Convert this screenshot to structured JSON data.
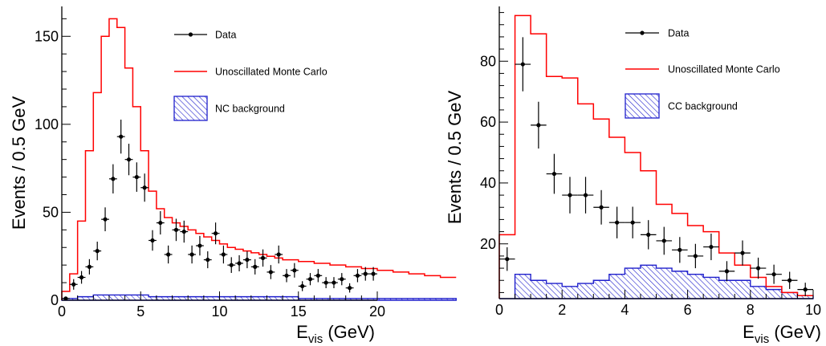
{
  "colors": {
    "mc": "#ff0000",
    "bg": "#1f1fcc",
    "data": "#000000"
  },
  "chart_data": [
    {
      "type": "histogram",
      "xlabel_main": "E",
      "xlabel_sub": "vis",
      "xlabel_unit": " (GeV)",
      "ylabel": "Events / 0.5 GeV",
      "xlim": [
        0,
        20
      ],
      "ylim": [
        0,
        167
      ],
      "xticks": [
        0,
        5,
        10,
        15,
        20
      ],
      "yticks": [
        0,
        50,
        100,
        150
      ],
      "bin_width": 0.5,
      "legend": {
        "data": "Data",
        "mc": "Unoscillated Monte Carlo",
        "bg": "NC background"
      },
      "mc_values": [
        5,
        15,
        45,
        85,
        118,
        150,
        160,
        155,
        132,
        110,
        85,
        62,
        52,
        47,
        44,
        42,
        40,
        38,
        36,
        34,
        32,
        30,
        29,
        28,
        27,
        26,
        25,
        24,
        23,
        23,
        22,
        22,
        21,
        21,
        20,
        20,
        19,
        19,
        18,
        18,
        17,
        17,
        16,
        16,
        15,
        15,
        14,
        14,
        13,
        13
      ],
      "bg_values": [
        1,
        1,
        2,
        2,
        3,
        3,
        3,
        3,
        3,
        3,
        3,
        2,
        2,
        2,
        2,
        2,
        2,
        2,
        2,
        2,
        2,
        2,
        2,
        2,
        2,
        2,
        2,
        2,
        2,
        2,
        1,
        1,
        1,
        1,
        1,
        1,
        1,
        1,
        1,
        1,
        1,
        1,
        1,
        1,
        1,
        1,
        1,
        1,
        1,
        1
      ],
      "data_points": [
        {
          "x": 0.25,
          "y": 1
        },
        {
          "x": 0.75,
          "y": 9
        },
        {
          "x": 1.25,
          "y": 13
        },
        {
          "x": 1.75,
          "y": 19
        },
        {
          "x": 2.25,
          "y": 28
        },
        {
          "x": 2.75,
          "y": 46
        },
        {
          "x": 3.25,
          "y": 69
        },
        {
          "x": 3.75,
          "y": 93
        },
        {
          "x": 4.25,
          "y": 80
        },
        {
          "x": 4.75,
          "y": 70
        },
        {
          "x": 5.25,
          "y": 64
        },
        {
          "x": 5.75,
          "y": 34
        },
        {
          "x": 6.25,
          "y": 44
        },
        {
          "x": 6.75,
          "y": 26
        },
        {
          "x": 7.25,
          "y": 40
        },
        {
          "x": 7.75,
          "y": 39
        },
        {
          "x": 8.25,
          "y": 26
        },
        {
          "x": 8.75,
          "y": 31
        },
        {
          "x": 9.25,
          "y": 23
        },
        {
          "x": 9.75,
          "y": 38
        },
        {
          "x": 10.25,
          "y": 26
        },
        {
          "x": 10.75,
          "y": 20
        },
        {
          "x": 11.25,
          "y": 21
        },
        {
          "x": 11.75,
          "y": 23
        },
        {
          "x": 12.25,
          "y": 19
        },
        {
          "x": 12.75,
          "y": 24
        },
        {
          "x": 13.25,
          "y": 16
        },
        {
          "x": 13.75,
          "y": 26
        },
        {
          "x": 14.25,
          "y": 14
        },
        {
          "x": 14.75,
          "y": 17
        },
        {
          "x": 15.25,
          "y": 8
        },
        {
          "x": 15.75,
          "y": 12
        },
        {
          "x": 16.25,
          "y": 14
        },
        {
          "x": 16.75,
          "y": 10
        },
        {
          "x": 17.25,
          "y": 10
        },
        {
          "x": 17.75,
          "y": 12
        },
        {
          "x": 18.25,
          "y": 7
        },
        {
          "x": 18.75,
          "y": 14
        },
        {
          "x": 19.25,
          "y": 15
        },
        {
          "x": 19.75,
          "y": 15
        }
      ]
    },
    {
      "type": "histogram",
      "xlabel_main": "E",
      "xlabel_sub": "vis",
      "xlabel_unit": " (GeV)",
      "ylabel": "Events / 0.5 GeV",
      "xlim": [
        0,
        10
      ],
      "ylim": [
        2,
        98
      ],
      "xticks": [
        0,
        2,
        4,
        6,
        8,
        10
      ],
      "yticks": [
        20,
        40,
        60,
        80
      ],
      "bin_width": 0.5,
      "legend": {
        "data": "Data",
        "mc": "Unoscillated Monte Carlo",
        "bg": "CC background"
      },
      "mc_values": [
        23,
        95,
        89,
        75,
        74.5,
        66,
        61,
        55,
        50,
        44,
        33,
        30,
        26,
        24,
        17,
        13,
        9,
        6,
        4,
        3
      ],
      "bg_values": [
        2,
        10,
        8,
        7,
        6,
        7,
        8,
        10,
        12,
        13,
        12,
        11,
        10,
        9,
        8,
        8,
        6,
        5,
        4,
        3
      ],
      "data_points": [
        {
          "x": 0.25,
          "y": 15
        },
        {
          "x": 0.75,
          "y": 79
        },
        {
          "x": 1.25,
          "y": 59
        },
        {
          "x": 1.75,
          "y": 43
        },
        {
          "x": 2.25,
          "y": 36
        },
        {
          "x": 2.75,
          "y": 36
        },
        {
          "x": 3.25,
          "y": 32
        },
        {
          "x": 3.75,
          "y": 27
        },
        {
          "x": 4.25,
          "y": 27
        },
        {
          "x": 4.75,
          "y": 23
        },
        {
          "x": 5.25,
          "y": 21
        },
        {
          "x": 5.75,
          "y": 18
        },
        {
          "x": 6.25,
          "y": 16
        },
        {
          "x": 6.75,
          "y": 19
        },
        {
          "x": 7.25,
          "y": 11
        },
        {
          "x": 7.75,
          "y": 17
        },
        {
          "x": 8.25,
          "y": 12
        },
        {
          "x": 8.75,
          "y": 10
        },
        {
          "x": 9.25,
          "y": 8
        },
        {
          "x": 9.75,
          "y": 5
        }
      ]
    }
  ]
}
